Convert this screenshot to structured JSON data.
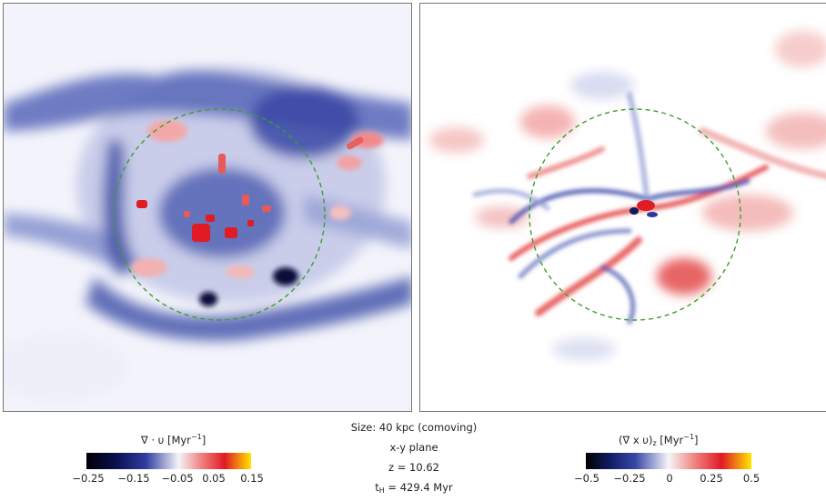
{
  "center_info": {
    "size": "Size: 40 kpc (comoving)",
    "plane": "x-y plane",
    "redshift": "z = 10.62",
    "time_prefix": "t",
    "time_sub": "H",
    "time_value": "= 429.4 Myr"
  },
  "left_colorbar": {
    "label_main": "∇ · υ [Myr",
    "label_exp": "−1",
    "label_end": "]",
    "ticks": [
      "−0.25",
      "−0.15",
      "−0.05",
      "0.05",
      "0.15"
    ]
  },
  "right_colorbar": {
    "label_main": "(∇ x υ)",
    "label_sub": "z",
    "label_units": " [Myr",
    "label_exp": "−1",
    "label_end": "]",
    "ticks": [
      "−0.5",
      "−0.25",
      "0",
      "0.25",
      "0.5"
    ]
  },
  "colors": {
    "virial_circle": "#3aa02a",
    "negative_deep": "#000000",
    "negative": "#2a3a9c",
    "positive": "#e01b24",
    "positive_max": "#ffe600"
  }
}
